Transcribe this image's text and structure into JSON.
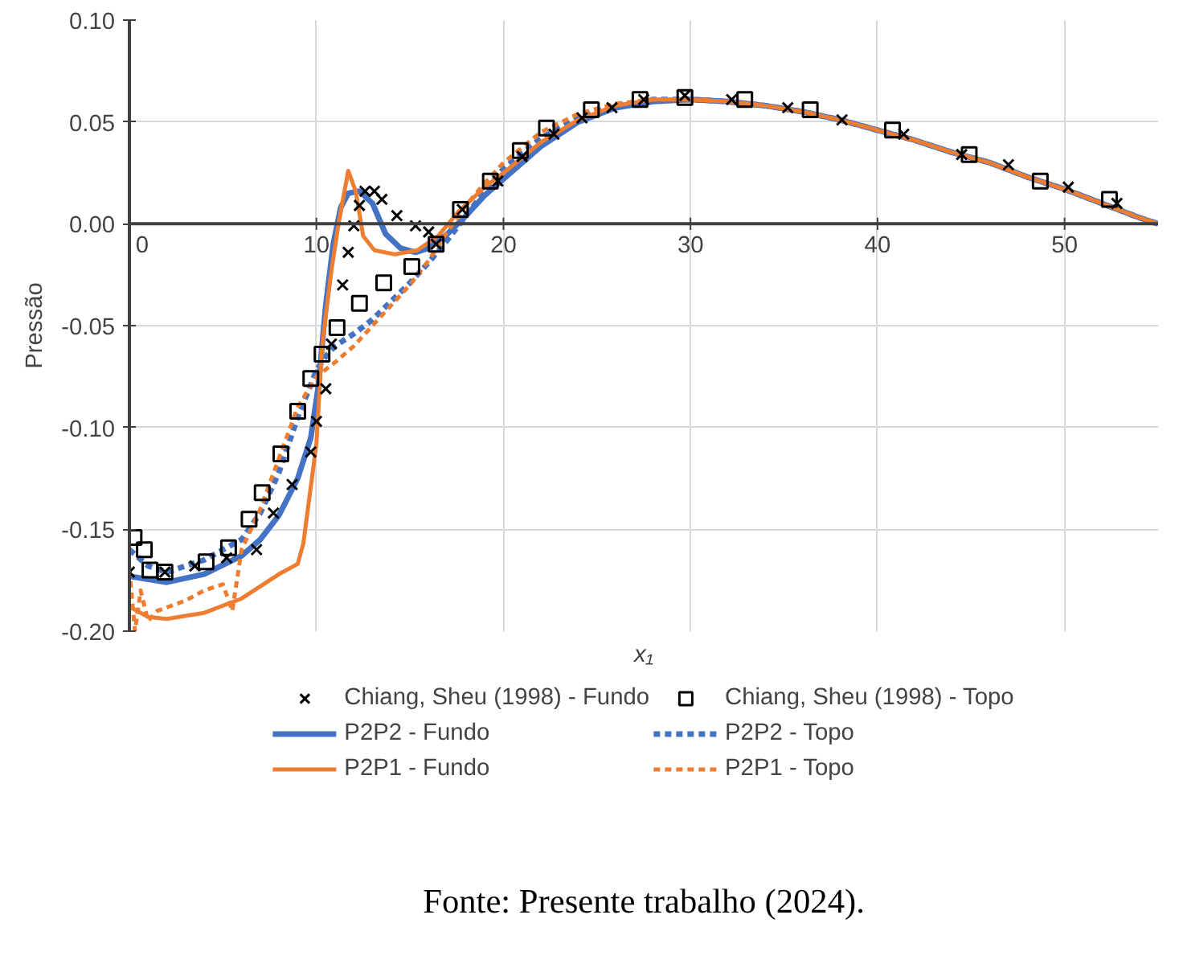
{
  "chart_data": {
    "type": "line",
    "xlabel": "x₁",
    "ylabel": "Pressão",
    "xlim": [
      0,
      55
    ],
    "ylim": [
      -0.2,
      0.1
    ],
    "xticks": [
      0,
      10,
      20,
      30,
      40,
      50
    ],
    "yticks": [
      {
        "value": -0.2,
        "label": "-0.20"
      },
      {
        "value": -0.15,
        "label": "-0.15"
      },
      {
        "value": -0.1,
        "label": "-0.10"
      },
      {
        "value": -0.05,
        "label": "-0.05"
      },
      {
        "value": 0,
        "label": "0.00"
      },
      {
        "value": 0.05,
        "label": "0.05"
      },
      {
        "value": 0.1,
        "label": "0.10"
      }
    ],
    "grid": true,
    "legend": "bottom",
    "annotations": [
      "Fonte: Presente trabalho (2024)."
    ],
    "series": [
      {
        "name": "Chiang, Sheu (1998) - Fundo",
        "type": "scatter",
        "marker": "cross",
        "color": "#000000",
        "x": [
          0,
          1.9,
          3.5,
          5.2,
          6.8,
          7.7,
          8.7,
          9.7,
          10.0,
          10.5,
          10.8,
          11.4,
          11.7,
          12.0,
          12.3,
          12.6,
          13.1,
          13.5,
          14.3,
          15.3,
          16.0,
          16.4,
          17.8,
          19.7,
          21.0,
          22.7,
          24.2,
          25.8,
          27.5,
          29.7,
          32.2,
          35.2,
          38.1,
          41.4,
          44.5,
          47.0,
          50.2,
          52.8
        ],
        "values": [
          -0.171,
          -0.171,
          -0.168,
          -0.164,
          -0.16,
          -0.142,
          -0.128,
          -0.112,
          -0.097,
          -0.081,
          -0.059,
          -0.03,
          -0.014,
          -0.001,
          0.009,
          0.016,
          0.016,
          0.012,
          0.004,
          -0.001,
          -0.004,
          -0.01,
          0.007,
          0.021,
          0.033,
          0.044,
          0.052,
          0.057,
          0.061,
          0.063,
          0.061,
          0.057,
          0.051,
          0.044,
          0.034,
          0.029,
          0.018,
          0.01
        ]
      },
      {
        "name": "Chiang, Sheu (1998) - Topo",
        "type": "scatter",
        "marker": "square",
        "color": "#000000",
        "x": [
          0.25,
          0.8,
          1.1,
          1.9,
          4.1,
          5.3,
          6.4,
          7.1,
          8.1,
          9.0,
          9.7,
          10.3,
          11.1,
          12.3,
          13.6,
          15.1,
          16.4,
          17.7,
          19.3,
          20.9,
          22.3,
          24.7,
          27.3,
          29.7,
          32.9,
          36.4,
          40.8,
          44.9,
          48.7,
          52.4
        ],
        "values": [
          -0.154,
          -0.16,
          -0.17,
          -0.171,
          -0.166,
          -0.159,
          -0.145,
          -0.132,
          -0.113,
          -0.092,
          -0.076,
          -0.064,
          -0.051,
          -0.039,
          -0.029,
          -0.021,
          -0.01,
          0.007,
          0.021,
          0.036,
          0.047,
          0.056,
          0.061,
          0.062,
          0.061,
          0.056,
          0.046,
          0.034,
          0.021,
          0.012
        ]
      },
      {
        "name": "P2P2 - Fundo",
        "line_style": "solid",
        "color": "#4472c4",
        "x": [
          0,
          2,
          4,
          6,
          7,
          8,
          9,
          9.7,
          10.1,
          10.5,
          10.9,
          11.3,
          11.7,
          12.3,
          13,
          13.7,
          14.5,
          15.3,
          16,
          17,
          18,
          19,
          20,
          22,
          24,
          26,
          28,
          30,
          32,
          34,
          36,
          38,
          40,
          42,
          44,
          46,
          48,
          50,
          52,
          54,
          55
        ],
        "values": [
          -0.173,
          -0.176,
          -0.172,
          -0.163,
          -0.155,
          -0.143,
          -0.125,
          -0.105,
          -0.08,
          -0.04,
          -0.01,
          0.008,
          0.015,
          0.016,
          0.01,
          -0.005,
          -0.012,
          -0.014,
          -0.012,
          -0.005,
          0.004,
          0.014,
          0.022,
          0.038,
          0.05,
          0.057,
          0.06,
          0.061,
          0.06,
          0.058,
          0.055,
          0.051,
          0.046,
          0.041,
          0.035,
          0.03,
          0.023,
          0.017,
          0.01,
          0.003,
          0
        ]
      },
      {
        "name": "P2P2 - Topo",
        "line_style": "dashed",
        "color": "#4472c4",
        "x": [
          0,
          1,
          2,
          4,
          6,
          7,
          8,
          9,
          10,
          10.5,
          11,
          12,
          13,
          14,
          15,
          16,
          17,
          18,
          19,
          20,
          22,
          24,
          26,
          28,
          30,
          32,
          34,
          36,
          38,
          40,
          42,
          44,
          46,
          48,
          50,
          52,
          54,
          55
        ],
        "values": [
          -0.16,
          -0.168,
          -0.171,
          -0.165,
          -0.155,
          -0.142,
          -0.122,
          -0.095,
          -0.072,
          -0.065,
          -0.06,
          -0.054,
          -0.047,
          -0.038,
          -0.029,
          -0.019,
          -0.008,
          0.004,
          0.016,
          0.027,
          0.042,
          0.052,
          0.058,
          0.061,
          0.061,
          0.06,
          0.058,
          0.055,
          0.051,
          0.046,
          0.041,
          0.035,
          0.03,
          0.023,
          0.017,
          0.01,
          0.003,
          0
        ]
      },
      {
        "name": "P2P1 - Fundo",
        "line_style": "solid",
        "color": "#ed7d31",
        "x": [
          0,
          1,
          2,
          4,
          6,
          8,
          9,
          9.3,
          10,
          10.3,
          10.8,
          11.2,
          11.7,
          12.1,
          12.5,
          13.1,
          14.2,
          15.4,
          16.5,
          17.6,
          19,
          20,
          22,
          24,
          26,
          28,
          30,
          32,
          34,
          36,
          38,
          40,
          42,
          44,
          46,
          48,
          50,
          52,
          54,
          55
        ],
        "values": [
          -0.188,
          -0.193,
          -0.194,
          -0.191,
          -0.184,
          -0.172,
          -0.167,
          -0.157,
          -0.108,
          -0.06,
          -0.023,
          0.001,
          0.026,
          0.016,
          -0.006,
          -0.013,
          -0.015,
          -0.013,
          -0.006,
          0.006,
          0.018,
          0.025,
          0.04,
          0.051,
          0.058,
          0.061,
          0.061,
          0.06,
          0.058,
          0.055,
          0.051,
          0.046,
          0.041,
          0.035,
          0.03,
          0.023,
          0.017,
          0.01,
          0.003,
          0
        ]
      },
      {
        "name": "P2P1 - Topo",
        "line_style": "dashed",
        "color": "#ed7d31",
        "x": [
          0,
          0.3,
          0.6,
          1,
          1.5,
          3,
          4,
          5,
          5.5,
          6,
          7,
          8,
          9,
          10,
          11,
          12,
          13,
          14,
          15,
          16,
          17,
          18,
          19,
          20,
          22,
          24,
          26,
          28,
          30,
          32,
          34,
          36,
          38,
          40,
          42,
          44,
          46,
          48,
          50,
          52,
          54,
          55
        ],
        "values": [
          -0.17,
          -0.2,
          -0.18,
          -0.195,
          -0.19,
          -0.185,
          -0.18,
          -0.177,
          -0.19,
          -0.16,
          -0.14,
          -0.115,
          -0.09,
          -0.075,
          -0.068,
          -0.06,
          -0.05,
          -0.04,
          -0.03,
          -0.018,
          -0.004,
          0.009,
          0.02,
          0.03,
          0.045,
          0.054,
          0.059,
          0.061,
          0.061,
          0.06,
          0.058,
          0.055,
          0.051,
          0.046,
          0.041,
          0.035,
          0.03,
          0.023,
          0.017,
          0.01,
          0.003,
          0
        ]
      }
    ]
  }
}
